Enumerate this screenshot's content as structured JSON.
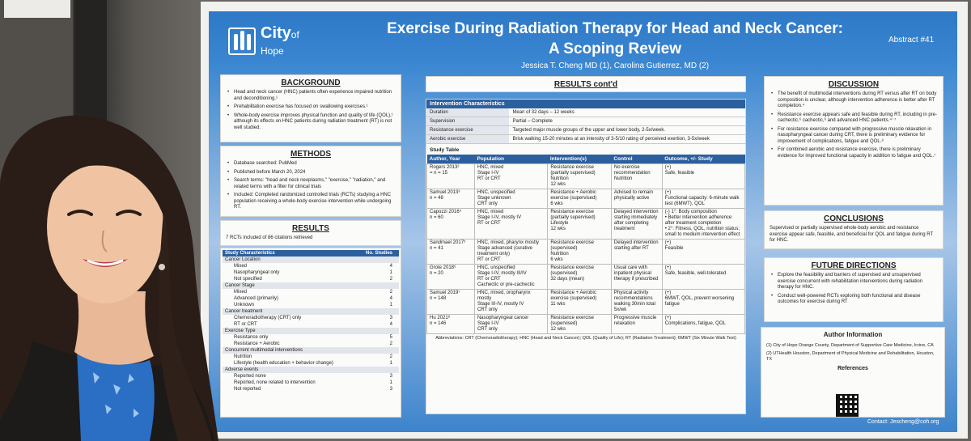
{
  "poster": {
    "logo_main": "City",
    "logo_sub": "of Hope",
    "title_line1": "Exercise During Radiation Therapy for Head and Neck Cancer:",
    "title_line2": "A Scoping Review",
    "authors": "Jessica T. Cheng MD (1), Carolina Gutierrez, MD (2)",
    "abstract": "Abstract #41",
    "contact": "Contact: Jescheng@coh.org"
  },
  "background": {
    "heading": "BACKGROUND",
    "bullets": [
      "Head and neck cancer (HNC) patients often experience impaired nutrition and deconditioning.¹",
      "Prehabilitation exercise has focused on swallowing exercises.¹",
      "Whole-body exercise improves physical function and quality of life (QOL),¹ although its effects on HNC patients during radiation treatment (RT) is not well studied."
    ]
  },
  "methods": {
    "heading": "METHODS",
    "bullets": [
      "Database searched: PubMed",
      "Published before March 20, 2024",
      "Search terms: \"head and neck neoplasms,\" \"exercise,\" \"radiation,\" and related terms with a filter for clinical trials",
      "Included: Completed randomized controlled trials (RCTs) studying a HNC population receiving a whole-body exercise intervention while undergoing RT."
    ]
  },
  "results": {
    "heading": "RESULTS",
    "summary": "7 RCTs included of 86 citations retrieved",
    "col1": "Study Characteristics",
    "col2": "No. Studies",
    "rows": [
      {
        "label": "Cancer Location",
        "value": "",
        "group": true
      },
      {
        "label": "Mixed",
        "value": "4",
        "group": false
      },
      {
        "label": "Nasopharyngeal only",
        "value": "1",
        "group": false
      },
      {
        "label": "Not specified",
        "value": "2",
        "group": false
      },
      {
        "label": "Cancer Stage",
        "value": "",
        "group": true
      },
      {
        "label": "Mixed",
        "value": "2",
        "group": false
      },
      {
        "label": "Advanced (primarily)",
        "value": "4",
        "group": false
      },
      {
        "label": "Unknown",
        "value": "1",
        "group": false
      },
      {
        "label": "Cancer treatment",
        "value": "",
        "group": true
      },
      {
        "label": "Chemoradiotherapy (CRT) only",
        "value": "3",
        "group": false
      },
      {
        "label": "RT or CRT",
        "value": "4",
        "group": false
      },
      {
        "label": "Exercise Type",
        "value": "",
        "group": true
      },
      {
        "label": "Resistance only",
        "value": "5",
        "group": false
      },
      {
        "label": "Resistance + Aerobic",
        "value": "2",
        "group": false
      },
      {
        "label": "Concurrent multimodal interventions",
        "value": "",
        "group": true
      },
      {
        "label": "Nutrition",
        "value": "2",
        "group": false
      },
      {
        "label": "Lifestyle (health education + behavior change)",
        "value": "1",
        "group": false
      },
      {
        "label": "Adverse events",
        "value": "",
        "group": true
      },
      {
        "label": "Reported none",
        "value": "3",
        "group": false
      },
      {
        "label": "Reported, none related to intervention",
        "value": "1",
        "group": false
      },
      {
        "label": "Not reported",
        "value": "3",
        "group": false
      }
    ]
  },
  "results_cont": {
    "heading": "RESULTS cont'd",
    "ic_title": "Intervention Characteristics",
    "ic_rows": [
      {
        "label": "Duration",
        "value": "Mean of 32 days – 12 weeks"
      },
      {
        "label": "Supervision",
        "value": "Partial – Complete"
      },
      {
        "label": "Resistance exercise",
        "value": "Targeted major muscle groups of the upper and lower body, 2-5x/week."
      },
      {
        "label": "Aerobic exercise",
        "value": "Brisk walking 15-20 minutes at an intensity of 3-5/10 rating of perceived exertion, 3-5x/week"
      }
    ],
    "study_title": "Study Table",
    "study_headers": [
      "Author, Year",
      "Population",
      "Intervention(s)",
      "Control",
      "Outcome, +/- Study"
    ],
    "studies": [
      [
        "Rogers 2013²\n= n = 15",
        "HNC, mixed\nStage I-IV\nRT or CRT",
        "Resistance exercise (partially supervised)\nNutrition\n12 wks",
        "No exercise recommendation\nNutrition",
        "(+)\nSafe, feasible"
      ],
      [
        "Samuel 2013³\nn = 48",
        "HNC, unspecified\nStage unknown\nCRT only",
        "Resistance + Aerobic exercise (supervised)\n6 wks",
        "Advised to remain physically active",
        "(+)\nFunctional capacity: 6-minute walk test (6MWT), QOL"
      ],
      [
        "Capozzi 2016⁴\nn = 60",
        "HNC, mixed\nStage I-IV, mostly IV\nRT or CRT",
        "Resistance exercise (partially supervised)\nLifestyle\n12 wks",
        "Delayed intervention starting immediately after completing treatment",
        "(-) 1°: Body composition\n• Better intervention adherence after treatment completion\n• 2°: Fitness, QOL, nutrition status; small to medium intervention effect"
      ],
      [
        "Sandmael 2017⁵\nn = 41",
        "HNC, mixed, pharynx mostly\nStage advanced (curative treatment only)\nRT or CRT",
        "Resistance exercise (supervised)\nNutrition\n6 wks",
        "Delayed intervention starting after RT",
        "(+)\nFeasible"
      ],
      [
        "Grote 2018⁶\nn = 20",
        "HNC, unspecified\nStage I-IV, mostly III/IV\nRT or CRT\nCachectic or pre-cachectic",
        "Resistance exercise (supervised)\n32 days (mean)",
        "Usual care with inpatient physical therapy if prescribed",
        "(+)\nSafe, feasible, well-tolerated"
      ],
      [
        "Samuel 2019⁷\nn = 148",
        "HNC, mixed, oropharynx mostly\nStage III-IV, mostly IV\nCRT only",
        "Resistance + Aerobic exercise (supervised)\n11 wks",
        "Physical activity recommendations walking 30min total 5x/wk",
        "(+)\n6MWT, QOL, prevent worsening fatigue"
      ],
      [
        "Hu 2021⁸\nn = 146",
        "Nasopharyngeal cancer\nStage I-IV\nCRT only",
        "Resistance exercise (supervised)\n12 wks",
        "Progressive muscle relaxation",
        "(+)\nComplications, fatigue, QOL"
      ]
    ],
    "abbrev": "Abbreviations: CRT (Chemoradiotherapy); HNC (Head and Neck Cancer); QOL (Quality of Life); RT (Radiation Treatment); 6MWT (Six Minute Walk Test)"
  },
  "discussion": {
    "heading": "DISCUSSION",
    "bullets": [
      "The benefit of multimodal interventions during RT versus after RT on body composition is unclear, although intervention adherence is better after RT completion.⁴",
      "Resistance exercise appears safe and feasible during RT, including in pre-cachectic,⁶ cachectic,⁶ and advanced HNC patients.⁴⁻⁷",
      "For resistance exercise compared with progressive muscle relaxation in nasopharyngeal cancer during CRT, there is preliminary evidence for improvement of complications, fatigue and QOL.⁸",
      "For combined aerobic and resistance exercise, there is preliminary evidence for improved functional capacity in addition to fatigue and QOL.⁷"
    ]
  },
  "conclusions": {
    "heading": "CONCLUSIONS",
    "text": "Supervised or partially supervised whole-body aerobic and resistance exercise appear safe, feasible, and beneficial for QOL and fatigue during RT for HNC."
  },
  "future": {
    "heading": "FUTURE DIRECTIONS",
    "bullets": [
      "Explore the feasibility and barriers of supervised and unsupervised exercise concurrent with rehabilitation interventions during radiation therapy for HNC.",
      "Conduct well-powered RCTs exploring both functional and disease outcomes for exercise during RT"
    ]
  },
  "author_info": {
    "heading": "Author Information",
    "line1": "(1) City of Hope Orange County, Department of Supportive Care Medicine, Irvine, CA",
    "line2": "(2) UTHealth Houston, Department of Physical Medicine and Rehabilitation, Houston, TX",
    "refs": "References"
  },
  "colors": {
    "poster_blue": "#2e79c7",
    "table_header": "#2c5f9e",
    "dress_blue": "#2a6fc4"
  }
}
